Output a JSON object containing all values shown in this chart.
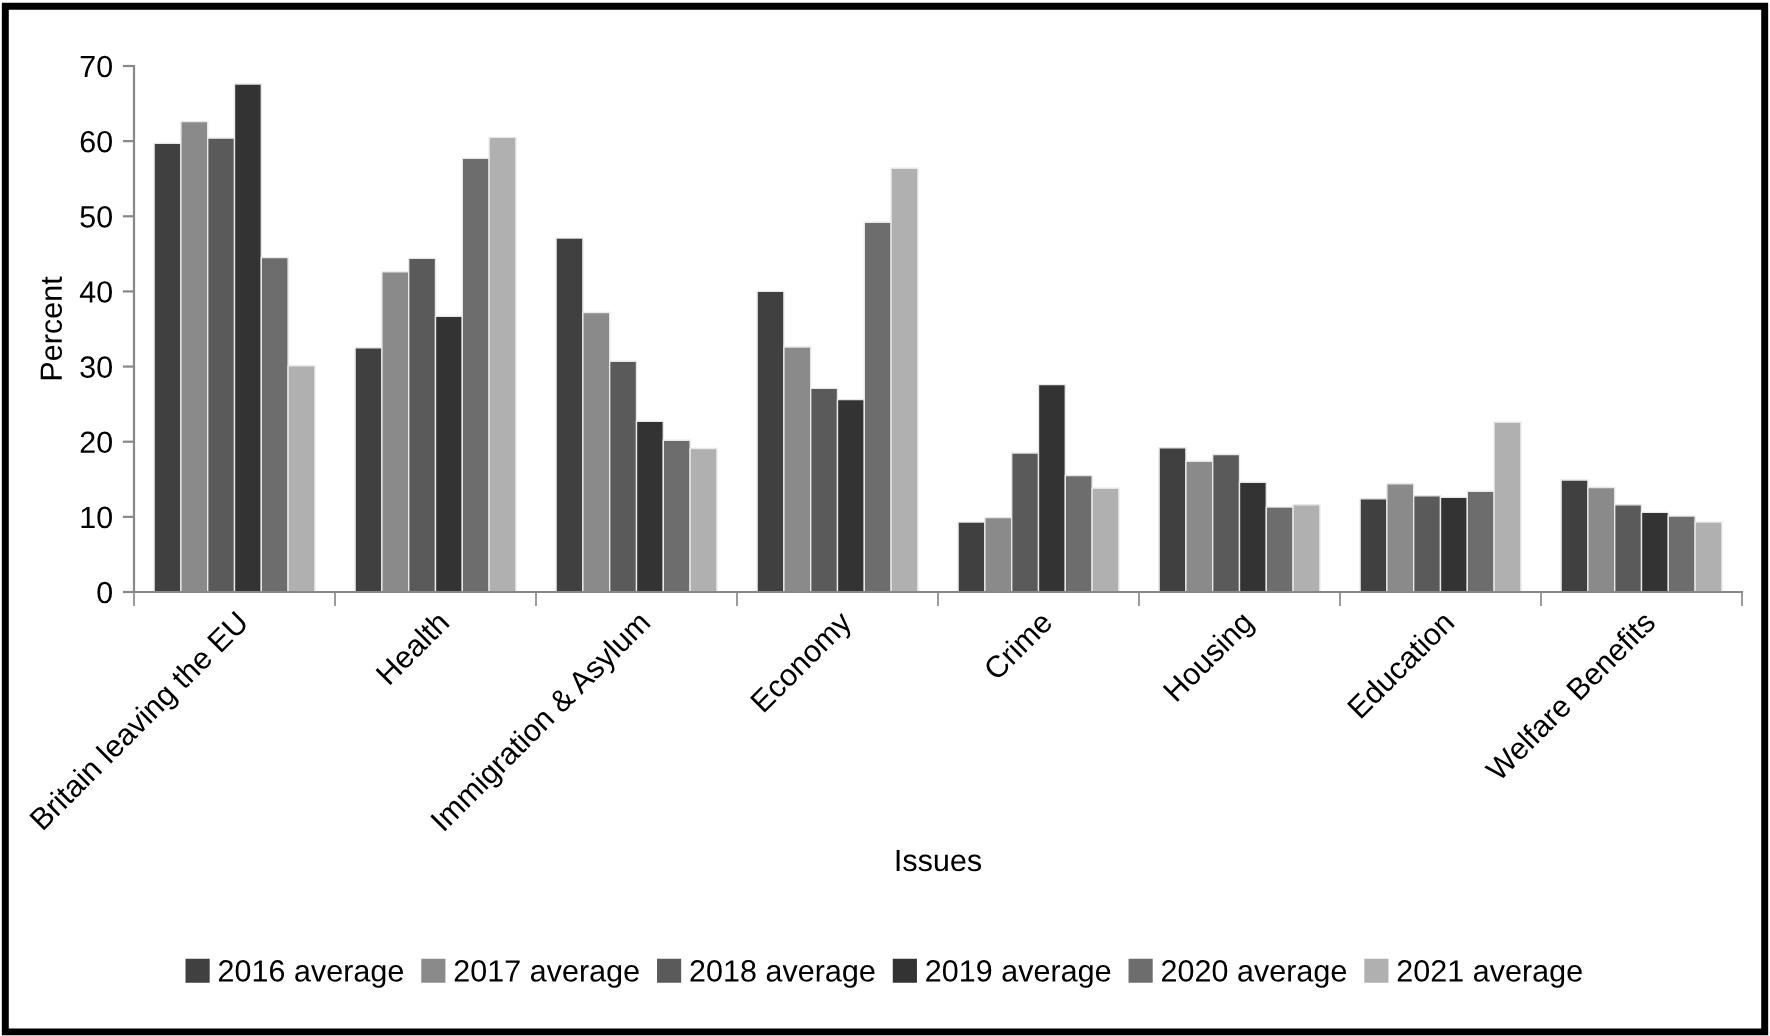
{
  "chart_data": {
    "type": "bar",
    "xlabel": "Issues",
    "ylabel": "Percent",
    "categories": [
      "Britain leaving the EU",
      "Health",
      "Immigration & Asylum",
      "Economy",
      "Crime",
      "Housing",
      "Education",
      "Welfare Benefits"
    ],
    "series": [
      {
        "name": "2016 average",
        "color": "#404040",
        "values": [
          59.7,
          32.5,
          47.1,
          40.0,
          9.3,
          19.2,
          12.4,
          14.9
        ]
      },
      {
        "name": "2017 average",
        "color": "#8a8a8a",
        "values": [
          62.6,
          42.6,
          37.2,
          32.6,
          9.9,
          17.4,
          14.4,
          13.9
        ]
      },
      {
        "name": "2018 average",
        "color": "#5a5a5a",
        "values": [
          60.4,
          44.4,
          30.7,
          27.1,
          18.5,
          18.3,
          12.8,
          11.6
        ]
      },
      {
        "name": "2019 average",
        "color": "#333333",
        "values": [
          67.6,
          36.7,
          22.7,
          25.6,
          27.6,
          14.6,
          12.6,
          10.6
        ]
      },
      {
        "name": "2020 average",
        "color": "#6d6d6d",
        "values": [
          44.5,
          57.7,
          20.2,
          49.2,
          15.5,
          11.3,
          13.4,
          10.1
        ]
      },
      {
        "name": "2021 average",
        "color": "#b0b0b0",
        "values": [
          30.1,
          60.5,
          19.1,
          56.4,
          13.8,
          11.6,
          22.6,
          9.3
        ]
      }
    ],
    "ylim": [
      0,
      70
    ],
    "yticks": [
      0,
      10,
      20,
      30,
      40,
      50,
      60,
      70
    ],
    "grid": false,
    "legend": "bottom"
  }
}
